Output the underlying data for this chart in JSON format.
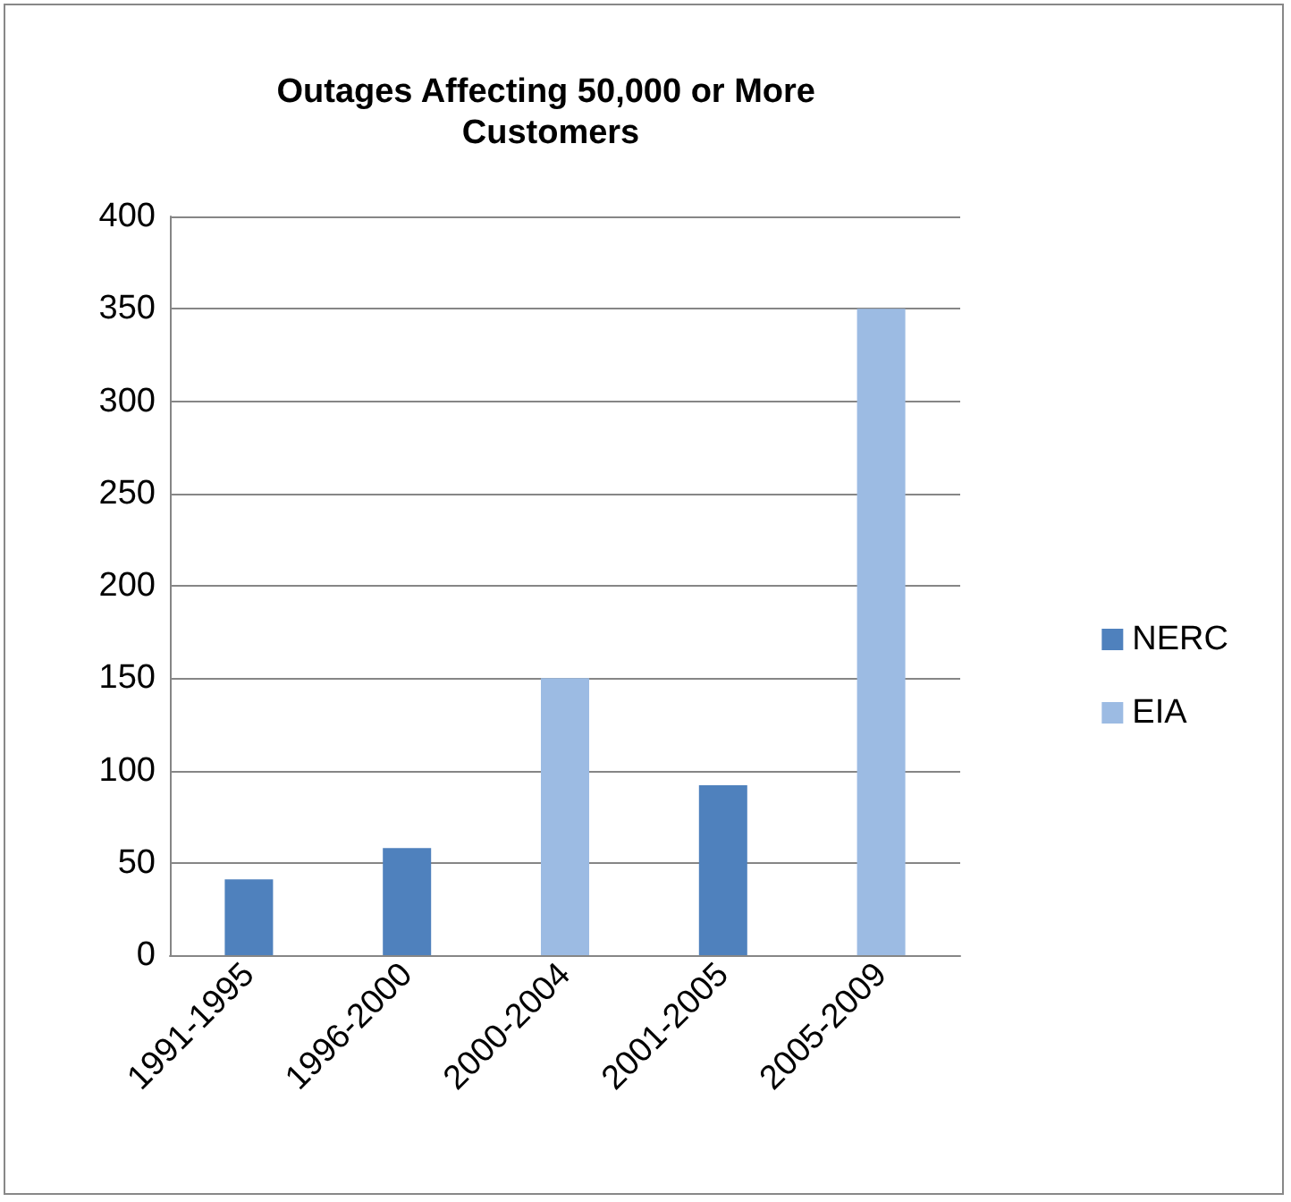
{
  "chart_data": {
    "type": "bar",
    "title": "Outages Affecting 50,000 or More Customers",
    "categories": [
      "1991-1995",
      "1996-2000",
      "2000-2004",
      "2001-2005",
      "2005-2009"
    ],
    "series": [
      {
        "name": "NERC",
        "color": "#4f81bd",
        "values": [
          41,
          58,
          null,
          92,
          null
        ]
      },
      {
        "name": "EIA",
        "color": "#9cbbe3",
        "values": [
          null,
          null,
          150,
          null,
          350
        ]
      }
    ],
    "ylim": [
      0,
      400
    ],
    "yticks": [
      0,
      50,
      100,
      150,
      200,
      250,
      300,
      350,
      400
    ],
    "grid": "y",
    "legend": "right"
  }
}
